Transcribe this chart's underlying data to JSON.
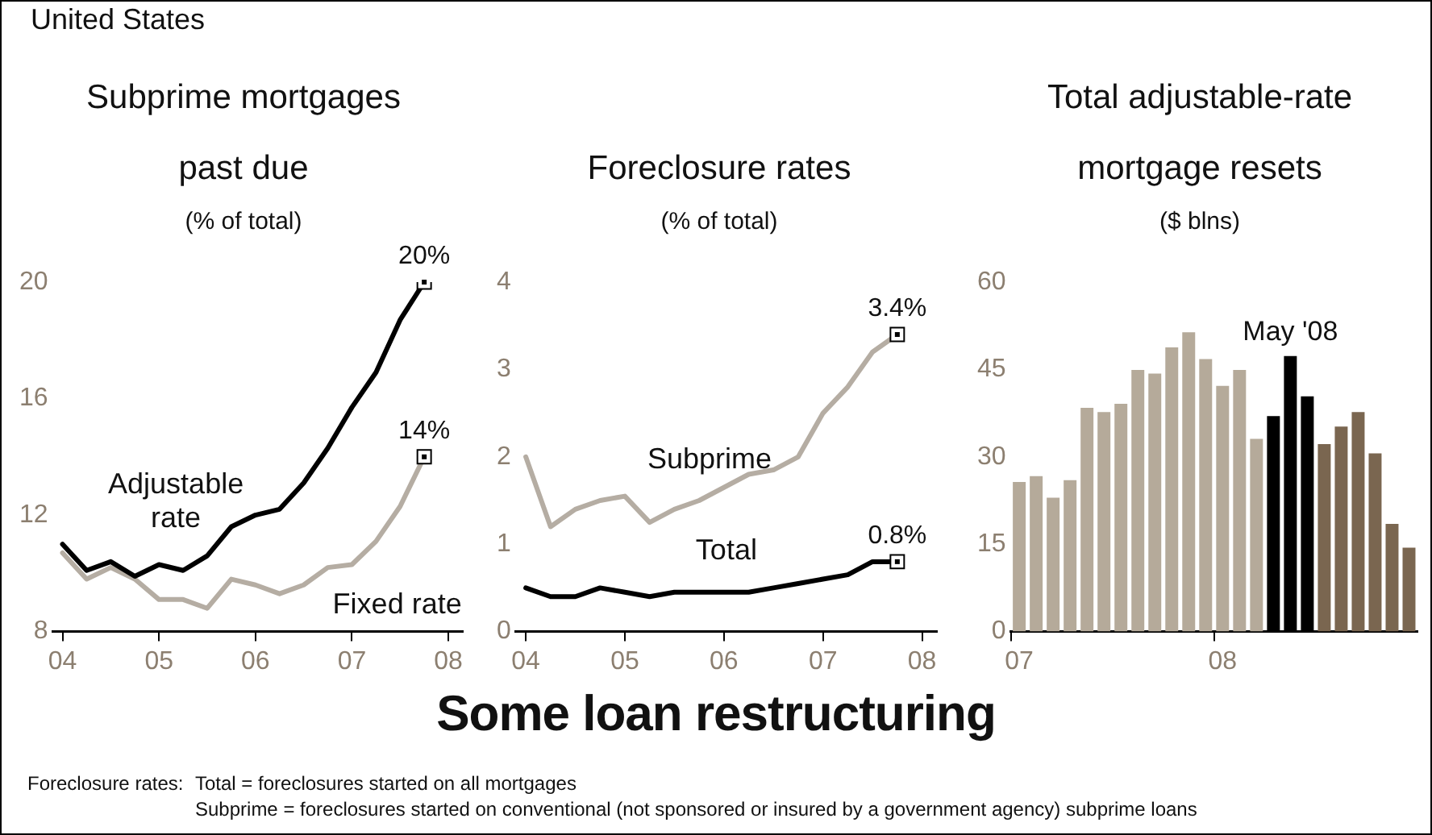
{
  "chart_data": [
    {
      "type": "other",
      "title": "United States"
    },
    {
      "type": "line",
      "title": "Subprime mortgages past due",
      "subtitle": "(% of total)",
      "x": [
        2004,
        2004.25,
        2004.5,
        2004.75,
        2005,
        2005.25,
        2005.5,
        2005.75,
        2006,
        2006.25,
        2006.5,
        2006.75,
        2007,
        2007.25,
        2007.5,
        2007.75
      ],
      "series": [
        {
          "name": "Adjustable rate",
          "color": "#000000",
          "values": [
            11.0,
            10.1,
            10.4,
            9.9,
            10.3,
            10.1,
            10.6,
            11.6,
            12.0,
            12.2,
            13.1,
            14.3,
            15.7,
            16.9,
            18.7,
            20
          ],
          "value_labels": [
            null,
            null,
            null,
            null,
            null,
            null,
            null,
            null,
            null,
            null,
            null,
            null,
            null,
            null,
            null,
            "20%"
          ]
        },
        {
          "name": "Fixed rate",
          "color": "#b5ada3",
          "values": [
            10.7,
            9.8,
            10.2,
            9.8,
            9.1,
            9.1,
            8.8,
            9.8,
            9.6,
            9.3,
            9.6,
            10.2,
            10.3,
            11.1,
            12.3,
            14
          ],
          "value_labels": [
            null,
            null,
            null,
            null,
            null,
            null,
            null,
            null,
            null,
            null,
            null,
            null,
            null,
            null,
            null,
            "14%"
          ]
        }
      ],
      "xlim": [
        2003.9,
        2008.15
      ],
      "xticks": [
        {
          "value": 2004,
          "label": "04"
        },
        {
          "value": 2005,
          "label": "05"
        },
        {
          "value": 2006,
          "label": "06"
        },
        {
          "value": 2007,
          "label": "07"
        },
        {
          "value": 2008,
          "label": "08"
        }
      ],
      "ylim": [
        8,
        20
      ],
      "yticks": [
        8,
        12,
        16,
        20
      ]
    },
    {
      "type": "line",
      "title": "Foreclosure rates",
      "subtitle": "(% of total)",
      "x": [
        2004,
        2004.25,
        2004.5,
        2004.75,
        2005,
        2005.25,
        2005.5,
        2005.75,
        2006,
        2006.25,
        2006.5,
        2006.75,
        2007,
        2007.25,
        2007.5,
        2007.75
      ],
      "series": [
        {
          "name": "Subprime",
          "color": "#b5ada3",
          "values": [
            2.0,
            1.2,
            1.4,
            1.5,
            1.55,
            1.25,
            1.4,
            1.5,
            1.65,
            1.8,
            1.85,
            2.0,
            2.5,
            2.8,
            3.2,
            3.4
          ],
          "value_labels": [
            null,
            null,
            null,
            null,
            null,
            null,
            null,
            null,
            null,
            null,
            null,
            null,
            null,
            null,
            null,
            "3.4%"
          ]
        },
        {
          "name": "Total",
          "color": "#000000",
          "values": [
            0.5,
            0.4,
            0.4,
            0.5,
            0.45,
            0.4,
            0.45,
            0.45,
            0.45,
            0.45,
            0.5,
            0.55,
            0.6,
            0.65,
            0.8,
            0.8
          ],
          "value_labels": [
            null,
            null,
            null,
            null,
            null,
            null,
            null,
            null,
            null,
            null,
            null,
            null,
            null,
            null,
            null,
            "0.8%"
          ]
        }
      ],
      "xlim": [
        2003.9,
        2008.15
      ],
      "xticks": [
        {
          "value": 2004,
          "label": "04"
        },
        {
          "value": 2005,
          "label": "05"
        },
        {
          "value": 2006,
          "label": "06"
        },
        {
          "value": 2007,
          "label": "07"
        },
        {
          "value": 2008,
          "label": "08"
        }
      ],
      "ylim": [
        0,
        4
      ],
      "yticks": [
        0,
        1,
        2,
        3,
        4
      ]
    },
    {
      "type": "bar",
      "title": "Total adjustable-rate mortgage resets",
      "subtitle": "($ blns)",
      "categories": [
        "07",
        null,
        null,
        null,
        null,
        null,
        null,
        null,
        null,
        null,
        null,
        null,
        "08",
        null,
        null,
        null,
        null,
        null,
        null,
        null,
        null,
        null,
        null,
        null
      ],
      "values": [
        25.7,
        26.7,
        23.0,
        26.0,
        38.4,
        37.7,
        39.1,
        44.9,
        44.3,
        48.8,
        51.4,
        46.8,
        42.2,
        44.9,
        33.1,
        37.0,
        47.3,
        40.4,
        32.2,
        35.2,
        37.7,
        30.6,
        18.5,
        14.4
      ],
      "colors": [
        "#b5aa9a",
        "#b5aa9a",
        "#b5aa9a",
        "#b5aa9a",
        "#b5aa9a",
        "#b5aa9a",
        "#b5aa9a",
        "#b5aa9a",
        "#b5aa9a",
        "#b5aa9a",
        "#b5aa9a",
        "#b5aa9a",
        "#b5aa9a",
        "#b5aa9a",
        "#b5aa9a",
        "#000000",
        "#000000",
        "#000000",
        "#7a6650",
        "#7a6650",
        "#7a6650",
        "#7a6650",
        "#7a6650",
        "#7a6650"
      ],
      "ylim": [
        0,
        60
      ],
      "yticks": [
        0,
        15,
        30,
        45,
        60
      ],
      "annotations": [
        {
          "text": "May '08",
          "y": 47.3
        }
      ]
    },
    {
      "type": "other",
      "title": "Some loan restructuring",
      "annotations": [
        "Foreclosure rates:",
        "Total = foreclosures started on all mortgages",
        "Subprime = foreclosures started on conventional (not sponsored or insured by a government agency) subprime loans"
      ]
    }
  ]
}
